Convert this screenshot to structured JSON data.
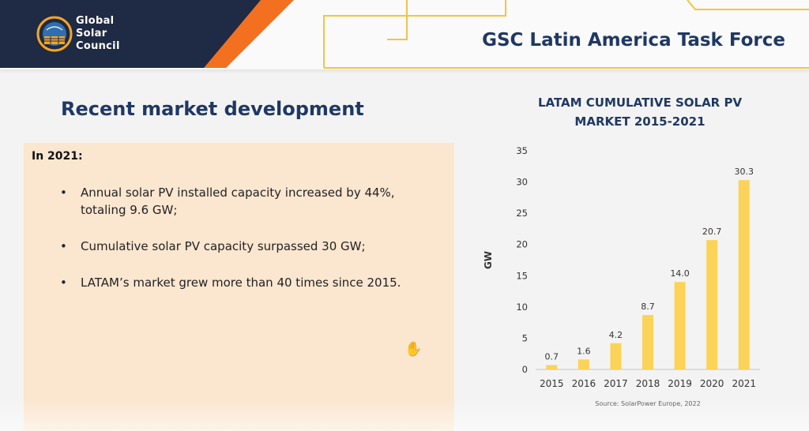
{
  "header": {
    "logo_lines": [
      "Global",
      "Solar",
      "Council"
    ],
    "title": "GSC Latin America Task Force"
  },
  "content": {
    "section_title": "Recent market development",
    "box_heading": "In 2021:",
    "bullets": [
      "Annual solar PV installed capacity increased by 44%, totaling 9.6 GW;",
      "Cumulative solar PV capacity surpassed 30 GW;",
      "LATAM’s market grew more than 40 times since 2015."
    ]
  },
  "colors": {
    "navy": "#1f2a44",
    "orange": "#f37021",
    "gold": "#f5c342",
    "bar": "#fbd358",
    "panel": "#fbe6d0",
    "title": "#1f3864"
  },
  "chart_data": {
    "type": "bar",
    "title": "LATAM CUMULATIVE SOLAR PV MARKET 2015-2021",
    "title_lines": [
      "LATAM CUMULATIVE SOLAR PV",
      "MARKET 2015-2021"
    ],
    "categories": [
      "2015",
      "2016",
      "2017",
      "2018",
      "2019",
      "2020",
      "2021"
    ],
    "values": [
      0.7,
      1.6,
      4.2,
      8.7,
      14.0,
      20.7,
      30.3
    ],
    "value_labels": [
      "0.7",
      "1.6",
      "4.2",
      "8.7",
      "14.0",
      "20.7",
      "30.3"
    ],
    "ylabel": "GW",
    "xlabel": "",
    "ylim": [
      0,
      35
    ],
    "yticks": [
      "0",
      "5",
      "10",
      "15",
      "20",
      "25",
      "30",
      "35"
    ],
    "source": "Source: SolarPower Europe, 2022"
  }
}
